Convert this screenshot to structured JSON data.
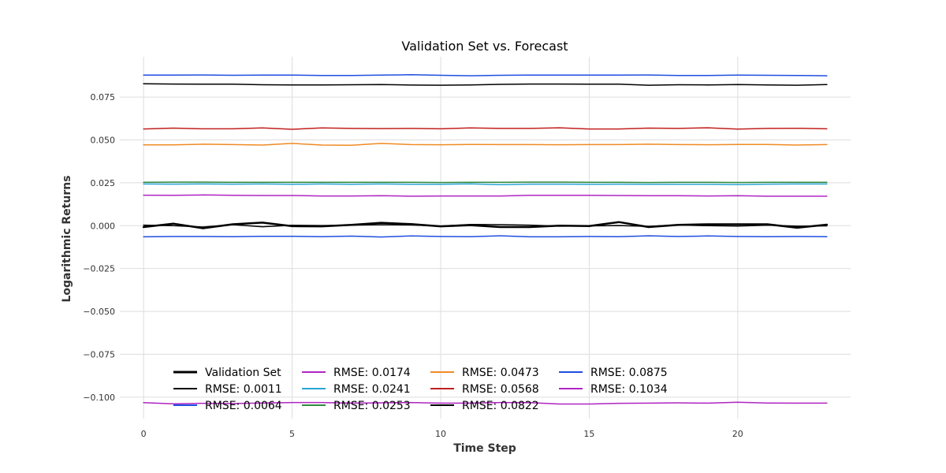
{
  "chart_data": {
    "type": "line",
    "title": "Validation Set vs. Forecast",
    "xlabel": "Time Step",
    "ylabel": "Logarithmic Returns",
    "xlim": [
      -0.8,
      23.8
    ],
    "ylim": [
      -0.1125,
      0.0985
    ],
    "xticks": [
      0,
      5,
      10,
      15,
      20
    ],
    "yticks": [
      -0.1,
      -0.075,
      -0.05,
      -0.025,
      0.0,
      0.025,
      0.05,
      0.075
    ],
    "ytick_labels": [
      "−0.100",
      "−0.075",
      "−0.050",
      "−0.025",
      "0.000",
      "0.025",
      "0.050",
      "0.075"
    ],
    "grid": true,
    "legend_position": "lower-left",
    "x": [
      0,
      1,
      2,
      3,
      4,
      5,
      6,
      7,
      8,
      9,
      10,
      11,
      12,
      13,
      14,
      15,
      16,
      17,
      18,
      19,
      20,
      21,
      22,
      23
    ],
    "series": [
      {
        "name": "Validation Set",
        "color": "#000000",
        "width": 2.5,
        "values": [
          -0.0008,
          0.0012,
          -0.0015,
          0.0008,
          0.0018,
          -0.0003,
          -0.0004,
          0.0005,
          0.0017,
          0.0009,
          -0.0004,
          0.0003,
          -0.0008,
          -0.0008,
          0.0,
          -0.0002,
          0.0021,
          -0.0008,
          0.0005,
          0.0008,
          0.0008,
          0.0008,
          -0.0012,
          0.0006
        ]
      },
      {
        "name": "RMSE: 0.0011",
        "color": "#000000",
        "width": 1.5,
        "values": [
          0.0003,
          0.0,
          -0.0008,
          0.0006,
          -0.0006,
          0.0002,
          0.0001,
          0.0003,
          0.0006,
          0.0004,
          -0.0002,
          0.0007,
          0.0006,
          0.0003,
          -0.0003,
          -0.0001,
          0.0001,
          -0.0004,
          0.0004,
          0.0,
          -0.0002,
          0.0003,
          -0.0003,
          -0.0001
        ]
      },
      {
        "name": "RMSE: 0.0064",
        "color": "#1f4ee0",
        "width": 1.5,
        "values": [
          -0.0065,
          -0.0063,
          -0.0063,
          -0.0064,
          -0.0062,
          -0.0062,
          -0.0064,
          -0.0061,
          -0.0066,
          -0.006,
          -0.0063,
          -0.0064,
          -0.0059,
          -0.0065,
          -0.0065,
          -0.0063,
          -0.0064,
          -0.0059,
          -0.0063,
          -0.006,
          -0.0063,
          -0.0064,
          -0.0063,
          -0.0064
        ]
      },
      {
        "name": "RMSE: 0.0174",
        "color": "#b025c2",
        "width": 1.5,
        "values": [
          0.0178,
          0.0177,
          0.0179,
          0.0177,
          0.0176,
          0.0176,
          0.0173,
          0.0173,
          0.0175,
          0.0172,
          0.0173,
          0.0173,
          0.0173,
          0.0177,
          0.0177,
          0.0177,
          0.0176,
          0.0175,
          0.0175,
          0.0173,
          0.0175,
          0.0172,
          0.0172,
          0.0172
        ]
      },
      {
        "name": "RMSE: 0.0241",
        "color": "#2aa5d6",
        "width": 1.5,
        "values": [
          0.0243,
          0.0242,
          0.0243,
          0.0242,
          0.0243,
          0.0241,
          0.0243,
          0.0241,
          0.0243,
          0.0241,
          0.0241,
          0.0244,
          0.0239,
          0.0242,
          0.0242,
          0.0241,
          0.0242,
          0.0241,
          0.0241,
          0.0241,
          0.024,
          0.0242,
          0.0243,
          0.0243
        ]
      },
      {
        "name": "RMSE: 0.0253",
        "color": "#2e8b3a",
        "width": 1.5,
        "values": [
          0.0253,
          0.0254,
          0.0254,
          0.0253,
          0.0253,
          0.0253,
          0.0253,
          0.0253,
          0.0253,
          0.0253,
          0.0252,
          0.0253,
          0.0253,
          0.0254,
          0.0254,
          0.0253,
          0.0253,
          0.0252,
          0.0253,
          0.0253,
          0.0252,
          0.0253,
          0.0253,
          0.0253
        ]
      },
      {
        "name": "RMSE: 0.0473",
        "color": "#f08a24",
        "width": 1.5,
        "values": [
          0.0471,
          0.0471,
          0.0475,
          0.0473,
          0.047,
          0.048,
          0.047,
          0.0469,
          0.048,
          0.0473,
          0.0472,
          0.0474,
          0.0473,
          0.0473,
          0.0472,
          0.0473,
          0.0473,
          0.0475,
          0.0473,
          0.0472,
          0.0474,
          0.0474,
          0.047,
          0.0473
        ]
      },
      {
        "name": "RMSE: 0.0568",
        "color": "#c0201e",
        "width": 1.5,
        "values": [
          0.0564,
          0.0569,
          0.0565,
          0.0565,
          0.057,
          0.0562,
          0.057,
          0.0567,
          0.0566,
          0.0567,
          0.0565,
          0.057,
          0.0567,
          0.0567,
          0.0571,
          0.0564,
          0.0564,
          0.0569,
          0.0567,
          0.0571,
          0.0563,
          0.0567,
          0.0568,
          0.0565
        ]
      },
      {
        "name": "RMSE: 0.0822",
        "color": "#000000",
        "width": 1.5,
        "values": [
          0.0828,
          0.0826,
          0.0825,
          0.0825,
          0.0822,
          0.0821,
          0.0821,
          0.0822,
          0.0823,
          0.082,
          0.0819,
          0.0821,
          0.0824,
          0.0826,
          0.0826,
          0.0825,
          0.0825,
          0.0819,
          0.0822,
          0.0821,
          0.0823,
          0.0821,
          0.0819,
          0.0823
        ]
      },
      {
        "name": "RMSE: 0.0875",
        "color": "#1f4ee0",
        "width": 1.5,
        "values": [
          0.0878,
          0.0878,
          0.0879,
          0.0877,
          0.0878,
          0.0878,
          0.0876,
          0.0876,
          0.0878,
          0.088,
          0.0877,
          0.0874,
          0.0877,
          0.0878,
          0.0878,
          0.0878,
          0.0878,
          0.0879,
          0.0876,
          0.0876,
          0.0878,
          0.0877,
          0.0876,
          0.0874
        ]
      },
      {
        "name": "RMSE: 0.1034",
        "color": "#b025c2",
        "width": 1.5,
        "values": [
          -0.1032,
          -0.1039,
          -0.1036,
          -0.1037,
          -0.1034,
          -0.1031,
          -0.1031,
          -0.1035,
          -0.1033,
          -0.1031,
          -0.1035,
          -0.1035,
          -0.1031,
          -0.1032,
          -0.104,
          -0.104,
          -0.1036,
          -0.1035,
          -0.1033,
          -0.1035,
          -0.103,
          -0.1034,
          -0.1035,
          -0.1035
        ]
      }
    ]
  }
}
